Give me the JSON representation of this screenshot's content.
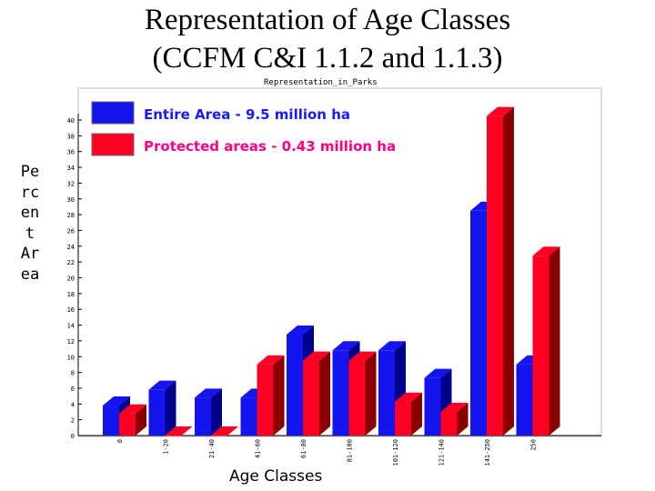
{
  "page": {
    "title_line1": "Representation of Age Classes",
    "title_line2": "(CCFM C&I 1.1.2 and 1.1.3)"
  },
  "chart_data": {
    "type": "bar",
    "title": "Representation_in_Parks",
    "ylabel": "Percent Area",
    "xlabel": "Age Classes",
    "ylim": [
      0,
      40
    ],
    "y_ticks": [
      "0",
      "2",
      "4",
      "6",
      "8",
      "10",
      "12",
      "14",
      "16",
      "18",
      "20",
      "22",
      "24",
      "26",
      "28",
      "30",
      "32",
      "34",
      "36",
      "38",
      "40"
    ],
    "categories": [
      "0",
      "1-20",
      "21-40",
      "41-60",
      "61-80",
      "81-100",
      "101-120",
      "121-140",
      "141-250",
      "250"
    ],
    "series": [
      {
        "name": "Entire Area - 9.5 million ha",
        "color": "#1414ee",
        "side_color": "#00008f",
        "values": [
          3.8,
          5.8,
          4.8,
          4.8,
          12.8,
          10.8,
          10.8,
          7.3,
          28.5,
          9.0
        ]
      },
      {
        "name": "Protected areas - 0.43 million ha",
        "color": "#ff0022",
        "side_color": "#8a0000",
        "values": [
          2.8,
          0.0,
          0.0,
          9.0,
          9.5,
          9.5,
          4.3,
          3.0,
          40.5,
          22.8
        ]
      }
    ],
    "legend_position": "top-left",
    "grid": false
  }
}
